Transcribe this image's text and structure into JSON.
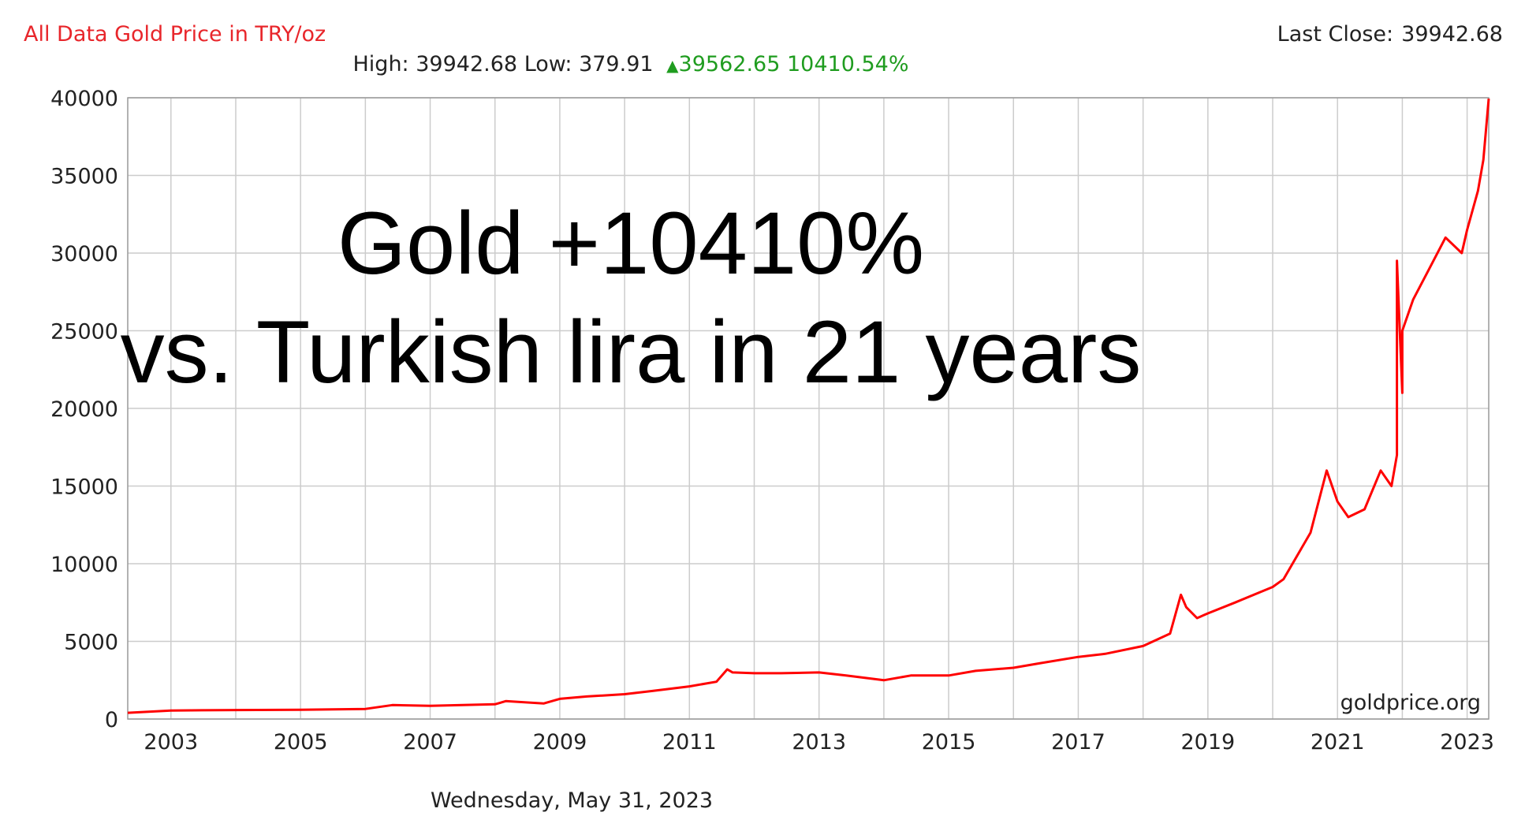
{
  "header": {
    "title": "All Data Gold Price in TRY/oz",
    "last_close_label": "Last Close:",
    "last_close_value": "39942.68",
    "high_label": "High:",
    "high_value": "39942.68",
    "low_label": "Low:",
    "low_value": "379.91",
    "change_value": "39562.65",
    "change_percent": "10410.54%",
    "change_icon": "triangle-up-icon"
  },
  "overlay": {
    "line1": "Gold +10410%",
    "line2": "vs. Turkish lira in 21 years"
  },
  "footer": {
    "date": "Wednesday, May 31, 2023"
  },
  "chart_data": {
    "type": "line",
    "title": "All Data Gold Price in TRY/oz",
    "xlabel": "",
    "ylabel": "",
    "xlim": [
      "2002-05",
      "2023-05"
    ],
    "ylim": [
      0,
      40000
    ],
    "grid": true,
    "watermark": "goldprice.org",
    "color": "#ff0000",
    "x_ticks": [
      "2003",
      "2005",
      "2007",
      "2009",
      "2011",
      "2013",
      "2015",
      "2017",
      "2019",
      "2021",
      "2023"
    ],
    "y_ticks": [
      "0",
      "5000",
      "10000",
      "15000",
      "20000",
      "25000",
      "30000",
      "35000",
      "40000"
    ],
    "series": [
      {
        "x": [
          "2002-05",
          "2003-01",
          "2004-01",
          "2005-01",
          "2006-01",
          "2006-06",
          "2007-01",
          "2008-01",
          "2008-03",
          "2008-10",
          "2009-01",
          "2009-06",
          "2010-01",
          "2010-06",
          "2011-01",
          "2011-06",
          "2011-08",
          "2011-09",
          "2012-01",
          "2012-06",
          "2013-01",
          "2013-06",
          "2014-01",
          "2014-06",
          "2015-01",
          "2015-06",
          "2016-01",
          "2016-06",
          "2017-01",
          "2017-06",
          "2018-01",
          "2018-06",
          "2018-08",
          "2018-09",
          "2018-11",
          "2019-01",
          "2019-06",
          "2020-01",
          "2020-03",
          "2020-08",
          "2020-11",
          "2021-01",
          "2021-03",
          "2021-06",
          "2021-09",
          "2021-11",
          "2021-12",
          "2021-12",
          "2022-01",
          "2022-01",
          "2022-03",
          "2022-06",
          "2022-09",
          "2022-12",
          "2023-01",
          "2023-03",
          "2023-04",
          "2023-05"
        ],
        "y": [
          400,
          550,
          580,
          600,
          650,
          900,
          850,
          950,
          1150,
          1000,
          1300,
          1450,
          1600,
          1800,
          2100,
          2400,
          3200,
          3000,
          2950,
          2950,
          3000,
          2800,
          2500,
          2800,
          2800,
          3100,
          3300,
          3600,
          4000,
          4200,
          4700,
          5500,
          8000,
          7200,
          6500,
          6800,
          7500,
          8500,
          9000,
          12000,
          16000,
          14000,
          13000,
          13500,
          16000,
          15000,
          17000,
          29500,
          21000,
          25000,
          27000,
          29000,
          31000,
          30000,
          31500,
          34000,
          36000,
          39942.68
        ]
      }
    ]
  }
}
